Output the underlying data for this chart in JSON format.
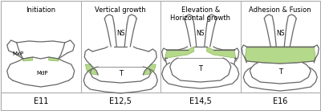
{
  "background_color": "#ffffff",
  "line_color": "#666666",
  "green_fill": "#b5d98a",
  "green_edge": "#8ab85a",
  "border_color": "#aaaaaa",
  "titles": [
    "Initiation",
    "Vertical growth",
    "Elevation &\nHorizontal growth",
    "Adhesion & Fusion"
  ],
  "stages": [
    "E11",
    "E12,5",
    "E14,5",
    "E16"
  ],
  "title_fontsize": 6.0,
  "stage_fontsize": 7.0,
  "lw": 0.9
}
